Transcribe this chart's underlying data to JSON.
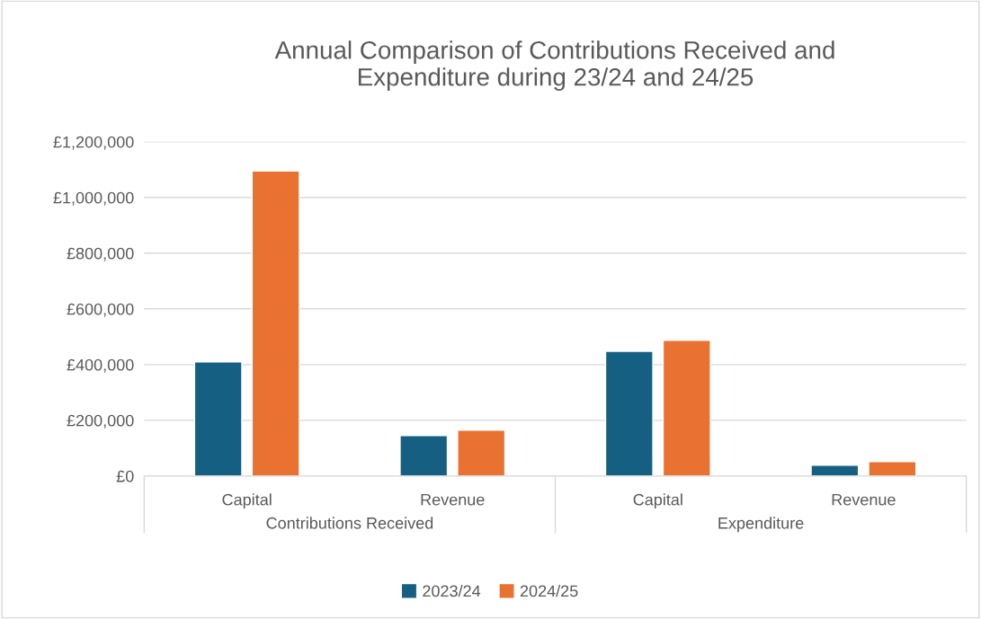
{
  "chart_data": {
    "type": "bar",
    "title": "Annual Comparison of Contributions Received and\nExpenditure during 23/24 and 24/25",
    "categories": [
      "Capital",
      "Revenue",
      "Capital",
      "Revenue"
    ],
    "series": [
      {
        "name": "2023/24",
        "color": "#156082",
        "values": [
          410000,
          145000,
          448000,
          39000
        ]
      },
      {
        "name": "2024/25",
        "color": "#e97132",
        "values": [
          1095000,
          165000,
          487000,
          52000
        ]
      }
    ],
    "ylim": [
      0,
      1200000
    ],
    "yticks": [
      {
        "value": 0,
        "label": "£0"
      },
      {
        "value": 200000,
        "label": "£200,000"
      },
      {
        "value": 400000,
        "label": "£400,000"
      },
      {
        "value": 600000,
        "label": "£600,000"
      },
      {
        "value": 800000,
        "label": "£800,000"
      },
      {
        "value": 1000000,
        "label": "£1,000,000"
      },
      {
        "value": 1200000,
        "label": "£1,200,000"
      }
    ],
    "annotations": [
      "Contributions Received",
      "Expenditure"
    ],
    "grid": "y",
    "legend": "bottom"
  }
}
